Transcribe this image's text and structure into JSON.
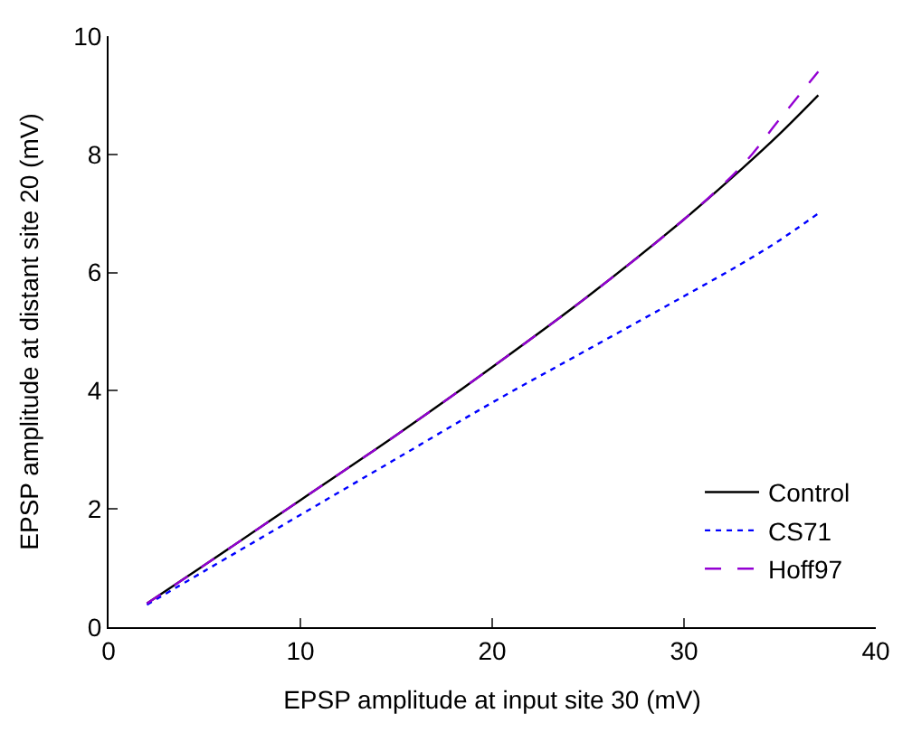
{
  "chart_data": {
    "type": "line",
    "xlabel": "EPSP amplitude at input site 30 (mV)",
    "ylabel": "EPSP amplitude at distant site 20 (mV)",
    "xlim": [
      0,
      40
    ],
    "xticks": [
      0,
      10,
      20,
      30,
      40
    ],
    "ylim": [
      0,
      10
    ],
    "yticks": [
      0,
      2,
      4,
      6,
      8,
      10
    ],
    "legend": "bottom right",
    "series": [
      {
        "name": "Control",
        "color": "#000000",
        "line_style": "solid",
        "x": [
          2,
          5,
          10,
          15,
          20,
          25,
          30,
          33,
          35,
          37
        ],
        "values": [
          0.4,
          1.05,
          2.15,
          3.25,
          4.4,
          5.6,
          6.9,
          7.75,
          8.35,
          9.0
        ]
      },
      {
        "name": "CS71",
        "color": "#0000ff",
        "line_style": "dotted",
        "x": [
          2,
          5,
          10,
          15,
          20,
          25,
          30,
          33,
          35,
          37
        ],
        "values": [
          0.38,
          0.95,
          1.9,
          2.85,
          3.8,
          4.7,
          5.6,
          6.15,
          6.55,
          7.0
        ]
      },
      {
        "name": "Hoff97",
        "color": "#9400d3",
        "line_style": "dashed",
        "x": [
          2,
          5,
          10,
          15,
          20,
          25,
          30,
          33,
          35,
          37
        ],
        "values": [
          0.4,
          1.05,
          2.15,
          3.25,
          4.4,
          5.6,
          6.9,
          7.8,
          8.6,
          9.4
        ]
      }
    ]
  }
}
